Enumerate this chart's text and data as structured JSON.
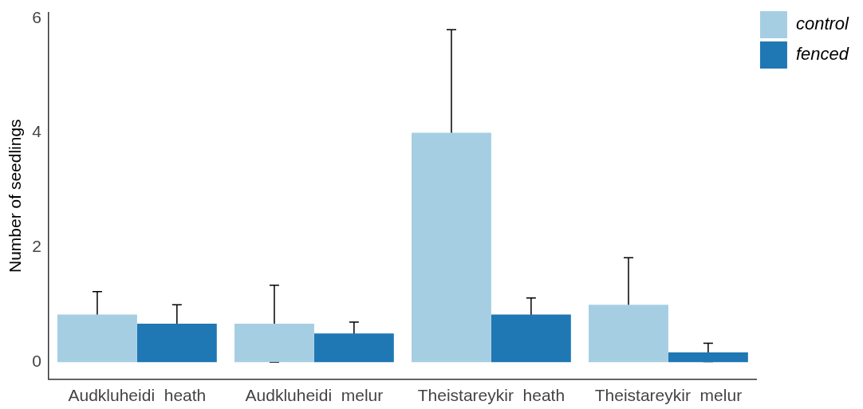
{
  "chart_data": {
    "type": "bar",
    "ylabel": "Number of seedlings",
    "categories": [
      "Audkluheidi  heath",
      "Audkluheidi  melur",
      "Theistareykir  heath",
      "Theistareykir  melur"
    ],
    "series": [
      {
        "name": "control",
        "color": "#a6cee3",
        "values": [
          0.83,
          0.67,
          4.0,
          1.0
        ],
        "errors": [
          0.4,
          0.67,
          1.8,
          0.82
        ]
      },
      {
        "name": "fenced",
        "color": "#1f78b4",
        "values": [
          0.67,
          0.5,
          0.83,
          0.17
        ],
        "errors": [
          0.33,
          0.2,
          0.29,
          0.16
        ]
      }
    ],
    "ylim": [
      -0.3,
      6.1
    ],
    "yticks": [
      0,
      2,
      4,
      6
    ],
    "grid": false,
    "legend": "top right"
  }
}
